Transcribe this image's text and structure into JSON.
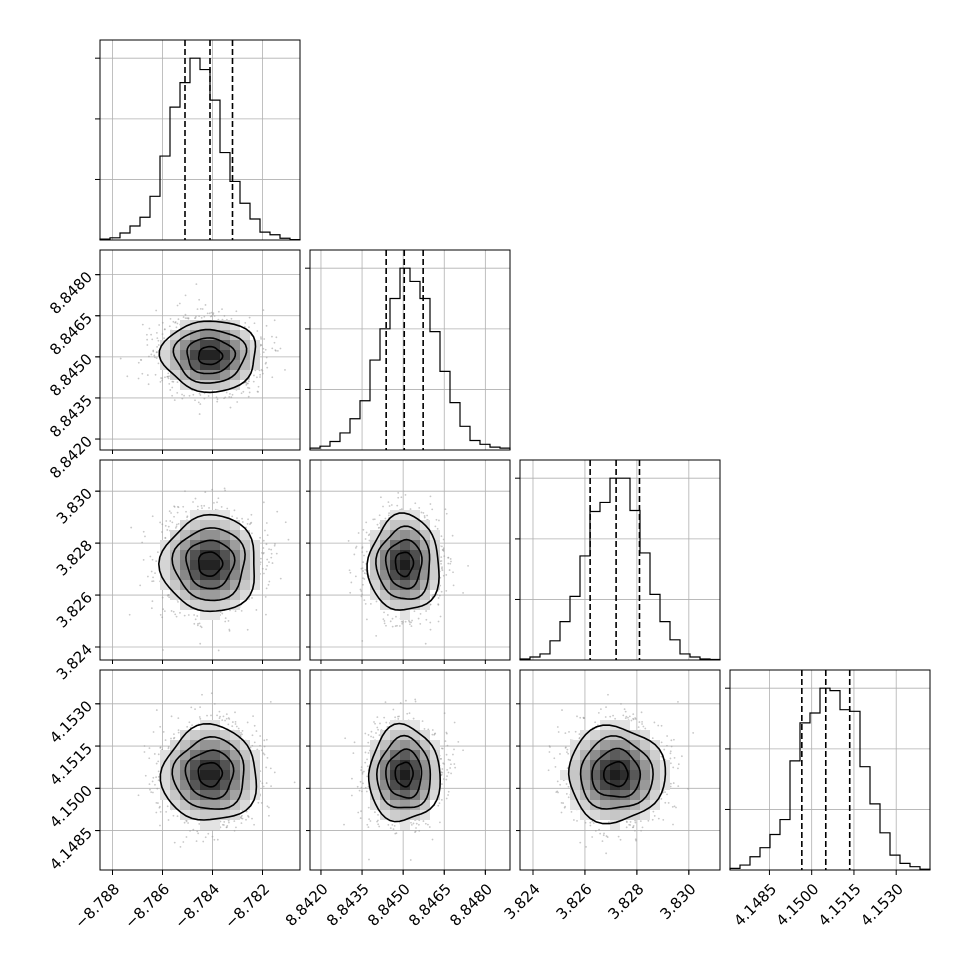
{
  "chart_data": {
    "type": "corner",
    "n_params": 4,
    "grid": true,
    "colors": {
      "line": "#000000",
      "grid": "#b0b0b0",
      "background": "#ffffff",
      "scatter": "#9a9a9a"
    },
    "params": [
      {
        "range": [
          -8.7885,
          -8.7805
        ],
        "ticks": [
          -8.788,
          -8.786,
          -8.784,
          -8.782
        ],
        "tick_labels": [
          "−8.788",
          "−8.786",
          "−8.784",
          "−8.782"
        ],
        "mean": -8.7841,
        "sd": 0.00095,
        "quantiles": [
          -8.7851,
          -8.7841,
          -8.7832
        ]
      },
      {
        "range": [
          8.8416,
          8.8489
        ],
        "ticks": [
          8.842,
          8.8435,
          8.845,
          8.8465,
          8.848
        ],
        "tick_labels": [
          "8.8420",
          "8.8435",
          "8.8450",
          "8.8465",
          "8.8480"
        ],
        "mean": 8.84504,
        "sd": 0.00065,
        "quantiles": [
          8.84438,
          8.84504,
          8.84573
        ]
      },
      {
        "range": [
          3.8235,
          3.8312
        ],
        "ticks": [
          3.824,
          3.826,
          3.828,
          3.83
        ],
        "tick_labels": [
          "3.824",
          "3.826",
          "3.828",
          "3.830"
        ],
        "mean": 3.8272,
        "sd": 0.00093,
        "quantiles": [
          3.8262,
          3.8272,
          3.8281
        ]
      },
      {
        "range": [
          4.1471,
          4.1542
        ],
        "ticks": [
          4.1485,
          4.15,
          4.1515,
          4.153
        ],
        "tick_labels": [
          "4.1485",
          "4.1500",
          "4.1515",
          "4.1530"
        ],
        "mean": 4.1505,
        "sd": 0.00085,
        "quantiles": [
          4.14965,
          4.1505,
          4.15135
        ]
      }
    ],
    "histograms": [
      {
        "param": 0,
        "bins": 20,
        "counts": [
          10,
          25,
          80,
          160,
          260,
          500,
          960,
          1520,
          1800,
          2080,
          1950,
          1600,
          1000,
          670,
          420,
          240,
          90,
          60,
          20,
          5
        ]
      },
      {
        "param": 1,
        "bins": 20,
        "counts": [
          20,
          40,
          90,
          180,
          330,
          520,
          950,
          1280,
          1600,
          1920,
          1780,
          1600,
          1250,
          830,
          500,
          250,
          100,
          60,
          30,
          20
        ]
      },
      {
        "param": 2,
        "bins": 20,
        "counts": [
          10,
          30,
          60,
          190,
          380,
          630,
          1030,
          1470,
          1560,
          1800,
          1800,
          1480,
          1060,
          650,
          380,
          200,
          60,
          30,
          10,
          5
        ]
      },
      {
        "param": 3,
        "bins": 20,
        "counts": [
          20,
          60,
          160,
          270,
          430,
          610,
          1320,
          1780,
          1900,
          2200,
          2170,
          1940,
          1920,
          1250,
          800,
          450,
          180,
          80,
          40,
          10
        ]
      }
    ],
    "contours": [
      {
        "x_param": 0,
        "y_param": 1
      },
      {
        "x_param": 0,
        "y_param": 2
      },
      {
        "x_param": 0,
        "y_param": 3
      },
      {
        "x_param": 1,
        "y_param": 2
      },
      {
        "x_param": 1,
        "y_param": 3
      },
      {
        "x_param": 2,
        "y_param": 3
      }
    ]
  }
}
